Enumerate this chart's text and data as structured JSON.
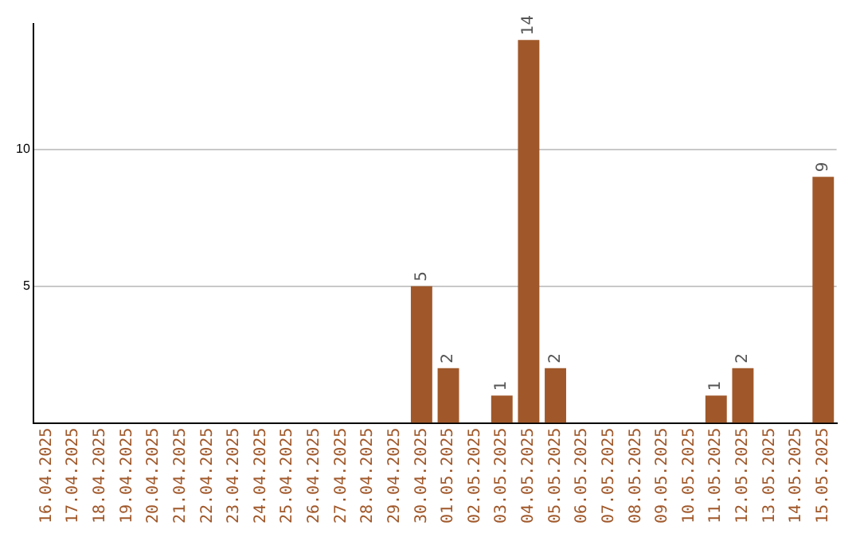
{
  "chart_data": {
    "type": "bar",
    "categories": [
      "16.04.2025",
      "17.04.2025",
      "18.04.2025",
      "19.04.2025",
      "20.04.2025",
      "21.04.2025",
      "22.04.2025",
      "23.04.2025",
      "24.04.2025",
      "25.04.2025",
      "26.04.2025",
      "27.04.2025",
      "28.04.2025",
      "29.04.2025",
      "30.04.2025",
      "01.05.2025",
      "02.05.2025",
      "03.05.2025",
      "04.05.2025",
      "05.05.2025",
      "06.05.2025",
      "07.05.2025",
      "08.05.2025",
      "09.05.2025",
      "10.05.2025",
      "11.05.2025",
      "12.05.2025",
      "13.05.2025",
      "14.05.2025",
      "15.05.2025"
    ],
    "values": [
      0,
      0,
      0,
      0,
      0,
      0,
      0,
      0,
      0,
      0,
      0,
      0,
      0,
      0,
      5,
      2,
      0,
      1,
      14,
      2,
      0,
      0,
      0,
      0,
      0,
      1,
      2,
      0,
      0,
      9
    ],
    "value_labels": [
      null,
      null,
      null,
      null,
      null,
      null,
      null,
      null,
      null,
      null,
      null,
      null,
      null,
      null,
      "5",
      "2",
      null,
      "1",
      "14",
      "2",
      null,
      null,
      null,
      null,
      null,
      "1",
      "2",
      null,
      null,
      "9"
    ],
    "color": "#a0582a",
    "ylim": [
      0,
      14.6
    ],
    "yticks": [
      5,
      10
    ],
    "grid": "y"
  }
}
